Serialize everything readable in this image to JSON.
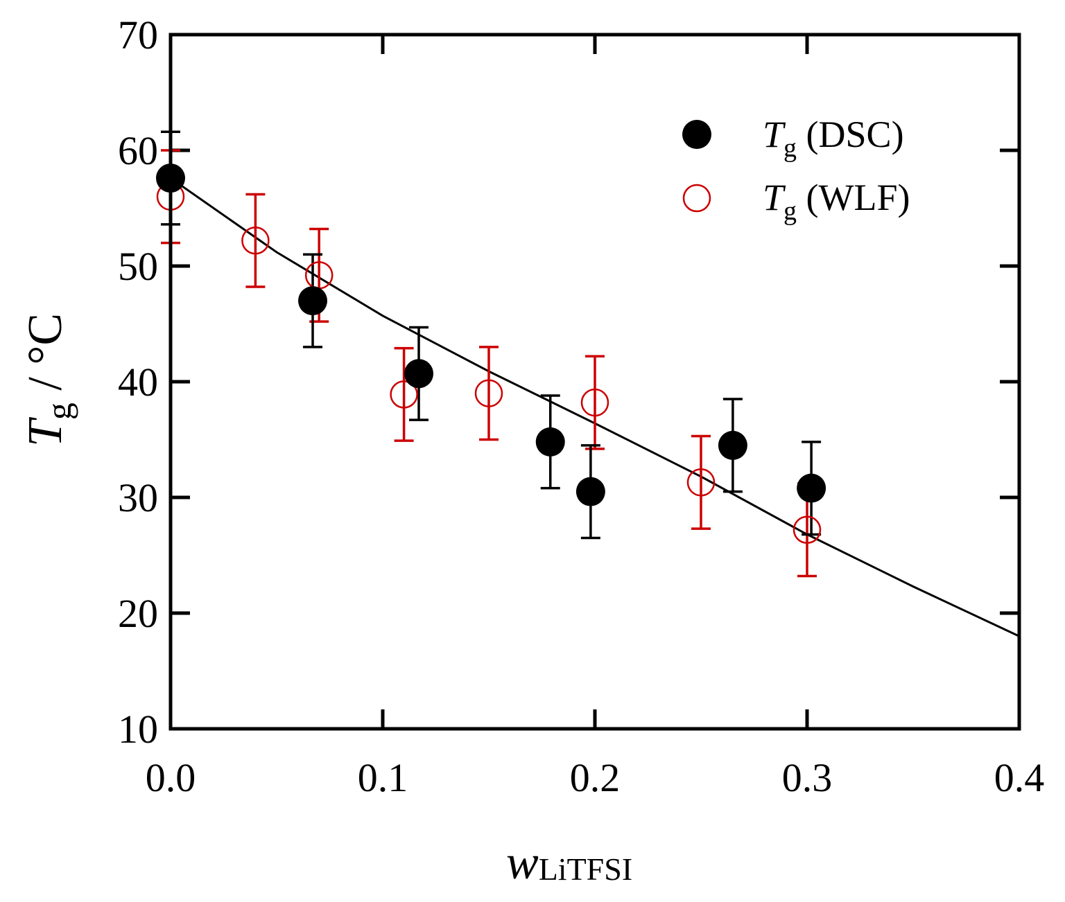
{
  "chart_data": {
    "type": "scatter",
    "title": "",
    "xlabel": {
      "main": "w",
      "sub": "LiTFSI"
    },
    "ylabel": {
      "main": "T",
      "sub": "g",
      "unit": " / °C"
    },
    "xlim": [
      0.0,
      0.4
    ],
    "ylim": [
      10,
      70
    ],
    "xticks": [
      0.0,
      0.1,
      0.2,
      0.3,
      0.4
    ],
    "xtick_labels": [
      "0.0",
      "0.1",
      "0.2",
      "0.3",
      "0.4"
    ],
    "yticks": [
      10,
      20,
      30,
      40,
      50,
      60,
      70
    ],
    "ytick_labels": [
      "10",
      "20",
      "30",
      "40",
      "50",
      "60",
      "70"
    ],
    "grid": false,
    "legend_position": "top-right",
    "series": [
      {
        "name": "Tg (DSC)",
        "label_main": "T",
        "label_sub": "g",
        "label_rest": " (DSC)",
        "marker": "filled-circle",
        "color": "#000000",
        "x": [
          0.0,
          0.067,
          0.117,
          0.179,
          0.198,
          0.265,
          0.302
        ],
        "y": [
          57.6,
          47.0,
          40.7,
          34.8,
          30.5,
          34.5,
          30.8
        ],
        "err": [
          4.0,
          4.0,
          4.0,
          4.0,
          4.0,
          4.0,
          4.0
        ]
      },
      {
        "name": "Tg (WLF)",
        "label_main": "T",
        "label_sub": "g",
        "label_rest": " (WLF)",
        "marker": "open-circle",
        "color": "#cc0000",
        "x": [
          0.0,
          0.04,
          0.07,
          0.11,
          0.15,
          0.2,
          0.25,
          0.3
        ],
        "y": [
          56.0,
          52.2,
          49.2,
          38.9,
          39.0,
          38.2,
          31.3,
          27.2
        ],
        "err": [
          4.0,
          4.0,
          4.0,
          4.0,
          4.0,
          4.0,
          4.0,
          4.0
        ]
      },
      {
        "name": "fit",
        "marker": "line",
        "color": "#000000",
        "x": [
          0.0,
          0.05,
          0.1,
          0.15,
          0.2,
          0.25,
          0.3,
          0.35,
          0.4
        ],
        "y": [
          57.6,
          51.2,
          45.7,
          40.9,
          36.4,
          31.8,
          26.8,
          22.3,
          18.0
        ]
      }
    ]
  }
}
